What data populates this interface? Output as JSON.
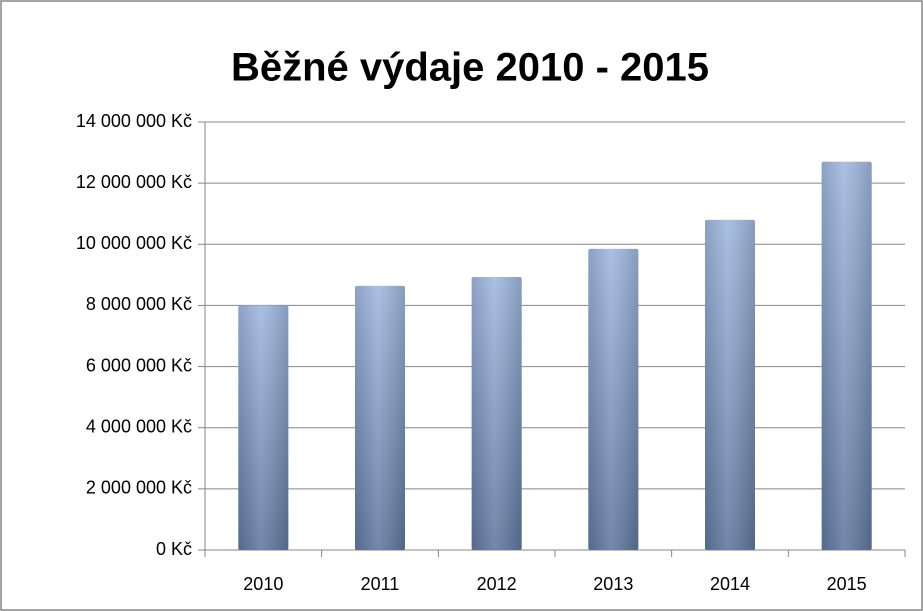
{
  "chart_data": {
    "type": "bar",
    "title": "Běžné výdaje 2010 - 2015",
    "categories": [
      "2010",
      "2011",
      "2012",
      "2013",
      "2014",
      "2015"
    ],
    "values": [
      8000000,
      8640000,
      8930000,
      9850000,
      10800000,
      12700000
    ],
    "color": "#7f9fd3",
    "ylim": [
      0,
      14000000
    ],
    "yticks": [
      {
        "value": 0,
        "label": "0 Kč"
      },
      {
        "value": 2000000,
        "label": "2 000 000 Kč"
      },
      {
        "value": 4000000,
        "label": "4 000 000 Kč"
      },
      {
        "value": 6000000,
        "label": "6 000 000 Kč"
      },
      {
        "value": 8000000,
        "label": "8 000 000 Kč"
      },
      {
        "value": 10000000,
        "label": "10 000 000 Kč"
      },
      {
        "value": 12000000,
        "label": "12 000 000 Kč"
      },
      {
        "value": 14000000,
        "label": "14 000 000 Kč"
      }
    ],
    "grid": true
  }
}
